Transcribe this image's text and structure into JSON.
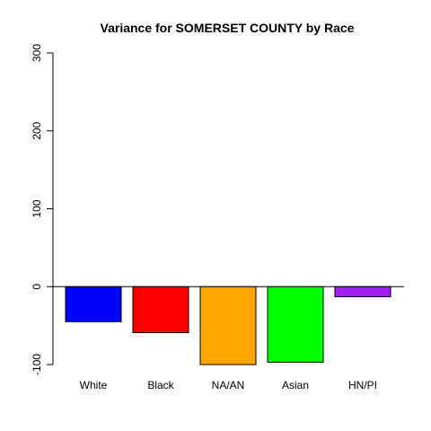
{
  "chart_data": {
    "type": "bar",
    "title": "Variance for SOMERSET COUNTY by Race",
    "xlabel": "",
    "ylabel": "",
    "categories": [
      "White",
      "Black",
      "NA/AN",
      "Asian",
      "HN/PI"
    ],
    "values": [
      -45,
      -59,
      -100,
      -97,
      -13
    ],
    "colors": [
      "#0000FF",
      "#FF0000",
      "#FFA500",
      "#00FF00",
      "#A020F0"
    ],
    "ylim": [
      -100,
      300
    ],
    "yticks": [
      -100,
      0,
      100,
      200,
      300
    ],
    "ytick_labels": [
      "-100",
      "0",
      "100",
      "200",
      "300"
    ],
    "baseline": 0,
    "grid": false,
    "legend": "none"
  }
}
